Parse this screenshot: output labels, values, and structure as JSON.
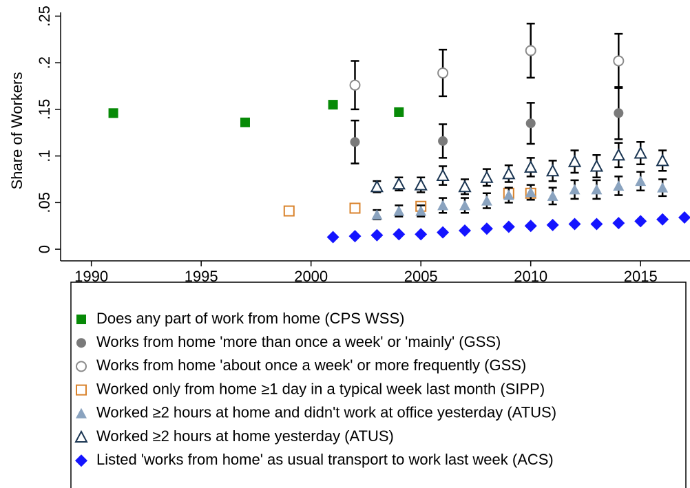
{
  "chart_data": {
    "type": "scatter",
    "y_label": "Share of Workers",
    "xlim": [
      1988.6,
      2017.25
    ],
    "xticks": [
      1990,
      1995,
      2000,
      2005,
      2010,
      2015
    ],
    "ylim": [
      -0.0125,
      0.254
    ],
    "yticks": [
      0,
      {
        "value": 0.05,
        "label": ".05"
      },
      {
        "value": 0.1,
        "label": ".1"
      },
      {
        "value": 0.15,
        "label": ".15"
      },
      {
        "value": 0.2,
        "label": ".2"
      },
      {
        "value": 0.25,
        "label": ".25"
      }
    ],
    "series": [
      {
        "name": "Does any part of work from home (CPS WSS)",
        "color": "#078a07",
        "marker": "square",
        "x": [
          1991,
          1997,
          2001,
          2004
        ],
        "values": [
          0.146,
          0.136,
          0.155,
          0.147
        ]
      },
      {
        "name": "Works from home 'more than once a week' or 'mainly' (GSS)",
        "color": "#7a7a7a",
        "marker": "circle",
        "x": [
          2002,
          2006,
          2010,
          2014
        ],
        "values": [
          0.115,
          0.116,
          0.135,
          0.146
        ],
        "errors": [
          0.023,
          0.018,
          0.022,
          0.028
        ]
      },
      {
        "name": "Works from home 'about once a week' or more frequently (GSS)",
        "color": "#8a8a8a",
        "marker": "circle-open",
        "x": [
          2002,
          2006,
          2010,
          2014
        ],
        "values": [
          0.176,
          0.189,
          0.213,
          0.202
        ],
        "errors": [
          0.026,
          0.025,
          0.029,
          0.029
        ]
      },
      {
        "name": "Worked only from home ≥1 day in a typical week last month (SIPP)",
        "color": "#d9822b",
        "marker": "square-open",
        "x": [
          1999,
          2002,
          2005,
          2009,
          2010
        ],
        "values": [
          0.041,
          0.044,
          0.046,
          0.06,
          0.06
        ],
        "errors": [
          0.002,
          0.002,
          0.003,
          0.004,
          0.004
        ]
      },
      {
        "name": "Worked ≥2 hours at home and didn't work at office yesterday (ATUS)",
        "color": "#8aa3bf",
        "marker": "triangle",
        "x": [
          2003,
          2004,
          2005,
          2006,
          2007,
          2008,
          2009,
          2010,
          2011,
          2012,
          2013,
          2014,
          2015,
          2016
        ],
        "values": [
          0.037,
          0.041,
          0.041,
          0.047,
          0.047,
          0.052,
          0.058,
          0.061,
          0.057,
          0.064,
          0.064,
          0.068,
          0.073,
          0.066
        ],
        "errors": [
          0.005,
          0.006,
          0.006,
          0.008,
          0.008,
          0.008,
          0.008,
          0.008,
          0.009,
          0.01,
          0.01,
          0.01,
          0.01,
          0.009
        ]
      },
      {
        "name": "Worked ≥2 hours at home yesterday (ATUS)",
        "color": "#1a3552",
        "marker": "triangle-open",
        "x": [
          2003,
          2004,
          2005,
          2006,
          2007,
          2008,
          2009,
          2010,
          2011,
          2012,
          2013,
          2014,
          2015,
          2016
        ],
        "values": [
          0.067,
          0.07,
          0.069,
          0.079,
          0.067,
          0.077,
          0.081,
          0.088,
          0.084,
          0.094,
          0.089,
          0.101,
          0.103,
          0.095
        ],
        "errors": [
          0.006,
          0.007,
          0.008,
          0.01,
          0.008,
          0.009,
          0.009,
          0.01,
          0.011,
          0.012,
          0.012,
          0.013,
          0.012,
          0.011
        ]
      },
      {
        "name": "Listed 'works from home' as usual transport to work last week (ACS)",
        "color": "#1414ff",
        "marker": "diamond",
        "x": [
          2001,
          2002,
          2003,
          2004,
          2005,
          2006,
          2007,
          2008,
          2009,
          2010,
          2011,
          2012,
          2013,
          2014,
          2015,
          2016,
          2017
        ],
        "values": [
          0.013,
          0.014,
          0.015,
          0.016,
          0.016,
          0.018,
          0.02,
          0.022,
          0.024,
          0.025,
          0.026,
          0.027,
          0.027,
          0.028,
          0.03,
          0.032,
          0.034
        ]
      }
    ]
  }
}
